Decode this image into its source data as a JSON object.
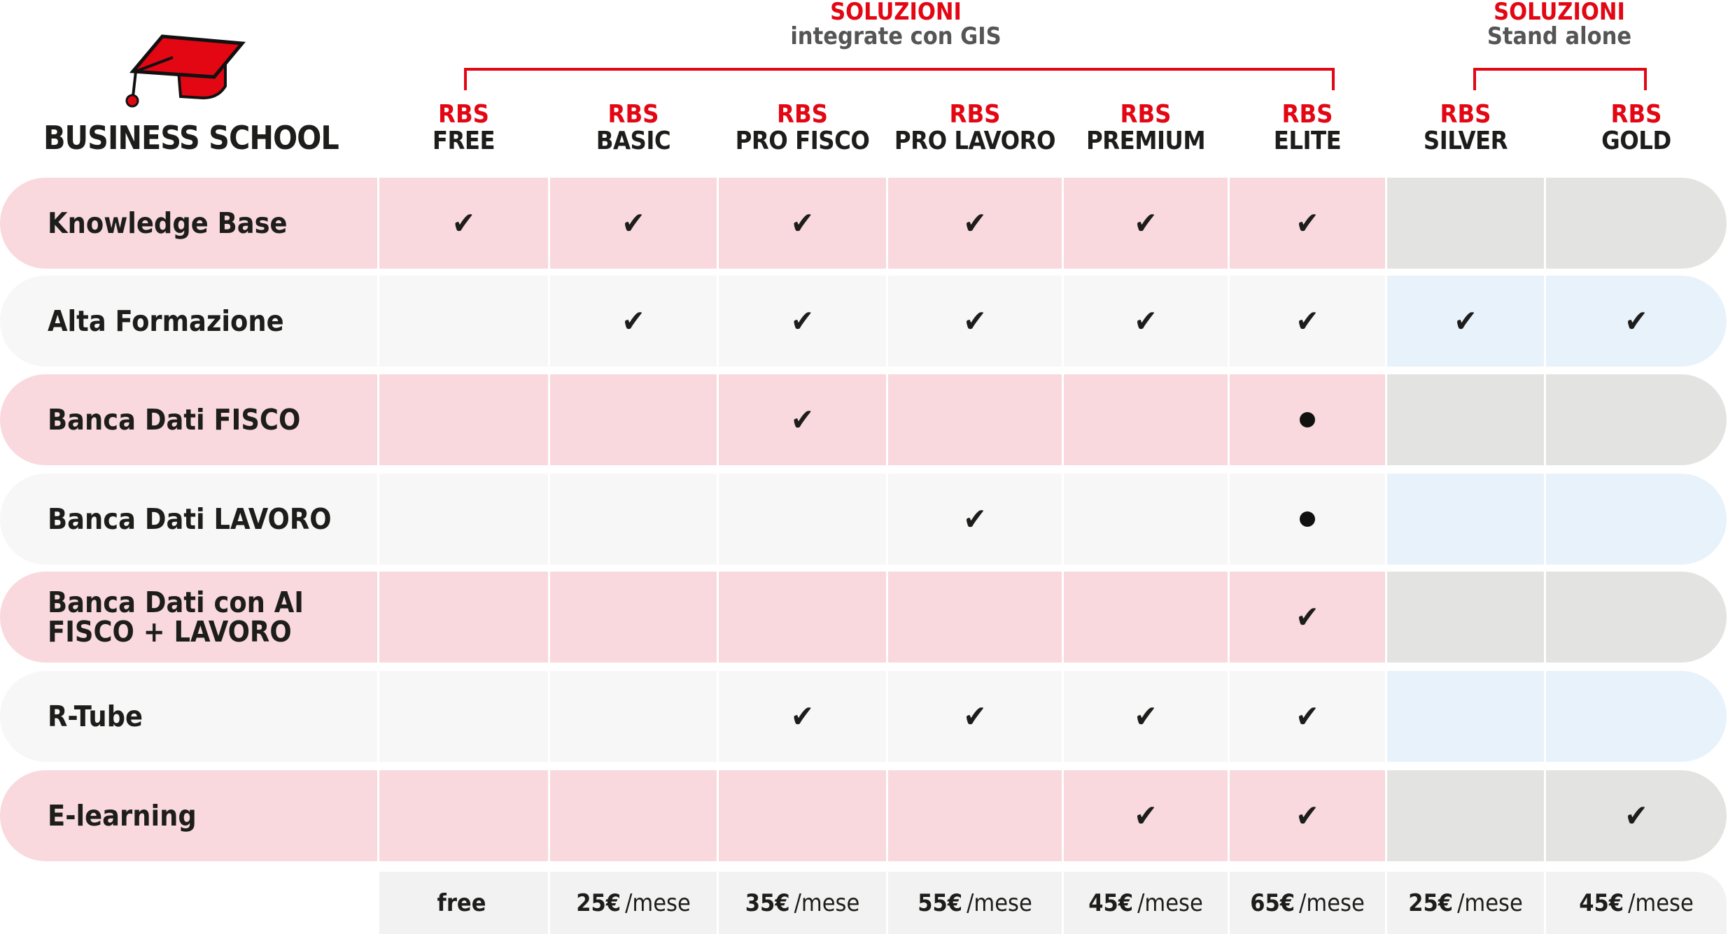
{
  "brand": {
    "name": "BUSINESS SCHOOL",
    "icon": "graduation-cap-icon",
    "accent": "#e30613"
  },
  "groups": [
    {
      "title": "SOLUZIONI",
      "subtitle": "integrate con GIS"
    },
    {
      "title": "SOLUZIONI",
      "subtitle": "Stand alone"
    }
  ],
  "columns": [
    {
      "prefix": "RBS",
      "name": "FREE"
    },
    {
      "prefix": "RBS",
      "name": "BASIC"
    },
    {
      "prefix": "RBS",
      "name": "PRO FISCO"
    },
    {
      "prefix": "RBS",
      "name": "PRO LAVORO"
    },
    {
      "prefix": "RBS",
      "name": "PREMIUM"
    },
    {
      "prefix": "RBS",
      "name": "ELITE"
    },
    {
      "prefix": "RBS",
      "name": "SILVER"
    },
    {
      "prefix": "RBS",
      "name": "GOLD"
    }
  ],
  "rows": [
    {
      "label": "Knowledge Base",
      "values": [
        "check",
        "check",
        "check",
        "check",
        "check",
        "check",
        "",
        ""
      ]
    },
    {
      "label": "Alta Formazione",
      "values": [
        "",
        "check",
        "check",
        "check",
        "check",
        "check",
        "check",
        "check"
      ]
    },
    {
      "label": "Banca Dati FISCO",
      "values": [
        "",
        "",
        "check",
        "",
        "",
        "dot",
        "",
        ""
      ]
    },
    {
      "label": "Banca Dati LAVORO",
      "values": [
        "",
        "",
        "",
        "check",
        "",
        "dot",
        "",
        ""
      ]
    },
    {
      "label": "Banca Dati con AI\nFISCO + LAVORO",
      "values": [
        "",
        "",
        "",
        "",
        "",
        "check",
        "",
        ""
      ]
    },
    {
      "label": "R-Tube",
      "values": [
        "",
        "",
        "check",
        "check",
        "check",
        "check",
        "",
        ""
      ]
    },
    {
      "label": "E-learning",
      "values": [
        "",
        "",
        "",
        "",
        "check",
        "check",
        "",
        "check"
      ]
    }
  ],
  "prices": [
    {
      "amount": "free",
      "unit": ""
    },
    {
      "amount": "25€",
      "unit": "/mese"
    },
    {
      "amount": "35€",
      "unit": "/mese"
    },
    {
      "amount": "55€",
      "unit": "/mese"
    },
    {
      "amount": "45€",
      "unit": "/mese"
    },
    {
      "amount": "65€",
      "unit": "/mese"
    },
    {
      "amount": "25€",
      "unit": "/mese"
    },
    {
      "amount": "45€",
      "unit": "/mese"
    }
  ],
  "colors": {
    "pink": "#f9d9dd",
    "light_gray": "#f7f7f7",
    "gray": "#e3e3e2",
    "light_blue": "#e8f2fb",
    "red": "#e30613"
  }
}
